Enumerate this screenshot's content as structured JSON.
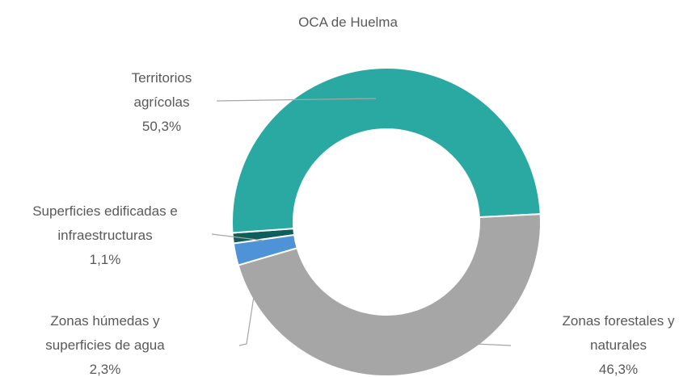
{
  "chart_data": {
    "type": "donut",
    "title": "OCA de Huelma",
    "categories": [
      "Superficies edificadas e infraestructuras",
      "Territorios agrícolas",
      "Zonas forestales y naturales",
      "Zonas húmedas y superficies de agua"
    ],
    "values": [
      1.1,
      50.3,
      46.3,
      2.3
    ],
    "value_labels": [
      "1,1%",
      "50,3%",
      "46,3%",
      "2,3%"
    ],
    "colors": [
      "#0e5f5b",
      "#2aa8a2",
      "#a6a6a6",
      "#4e92d8"
    ]
  }
}
